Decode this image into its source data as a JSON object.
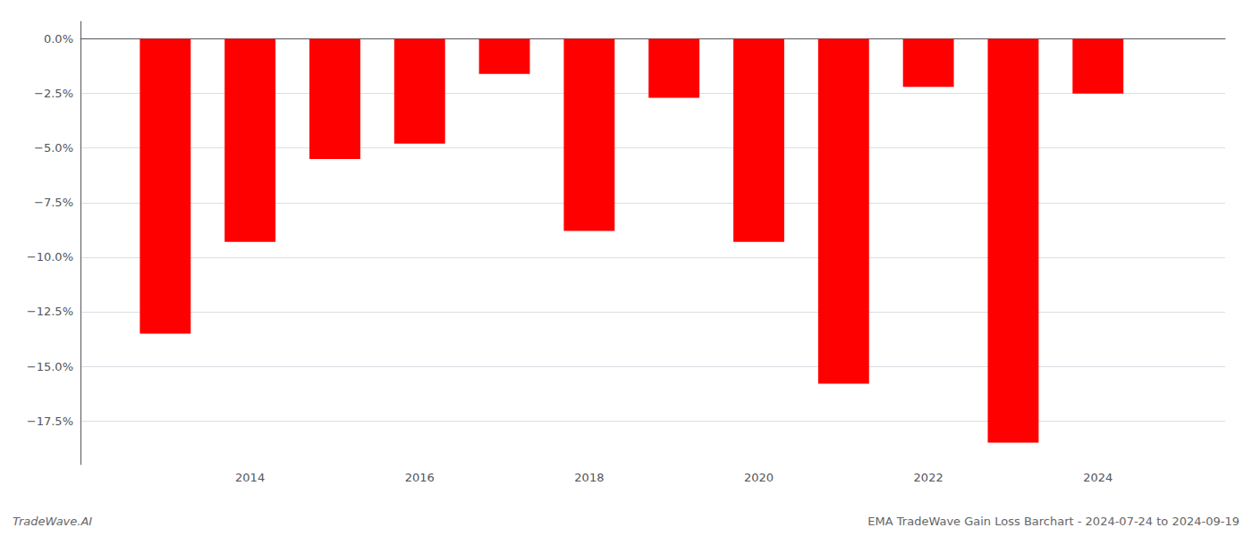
{
  "chart_data": {
    "type": "bar",
    "x": [
      2013,
      2014,
      2015,
      2016,
      2017,
      2018,
      2019,
      2020,
      2021,
      2022,
      2023,
      2024
    ],
    "values": [
      -13.5,
      -9.3,
      -5.5,
      -4.8,
      -1.6,
      -8.8,
      -2.7,
      -9.3,
      -15.8,
      -2.2,
      -18.5,
      -2.5
    ],
    "color": "#ff0000",
    "xlim": [
      2012.0,
      2025.5
    ],
    "xticks": [
      2014,
      2016,
      2018,
      2020,
      2022,
      2024
    ],
    "ylim": [
      -19.5,
      0.8
    ],
    "yticks": [
      {
        "value": 0.0,
        "label": "0.0%"
      },
      {
        "value": -2.5,
        "label": "−2.5%"
      },
      {
        "value": -5.0,
        "label": "−5.0%"
      },
      {
        "value": -7.5,
        "label": "−7.5%"
      },
      {
        "value": -10.0,
        "label": "−10.0%"
      },
      {
        "value": -12.5,
        "label": "−12.5%"
      },
      {
        "value": -15.0,
        "label": "−15.0%"
      },
      {
        "value": -17.5,
        "label": "−17.5%"
      }
    ],
    "grid": true,
    "annotations": [
      "TradeWave.AI",
      "EMA TradeWave Gain Loss Barchart - 2024-07-24 to 2024-09-19"
    ]
  }
}
